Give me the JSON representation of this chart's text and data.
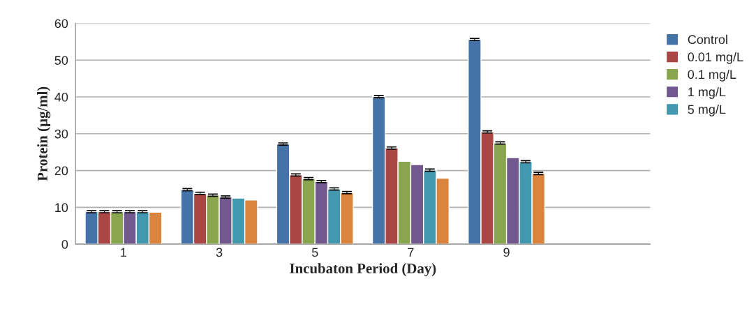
{
  "chart_data": {
    "type": "bar",
    "xlabel": "Incubaton Period (Day)",
    "ylabel": "Protein (µg/ml)",
    "categories": [
      "1",
      "3",
      "5",
      "7",
      "9",
      null
    ],
    "series": [
      {
        "name": "Control",
        "color": "#4572a7",
        "values": [
          8.8,
          14.8,
          27.2,
          40.1,
          55.6,
          null
        ],
        "errors": [
          0.3,
          0.3,
          0.3,
          0.3,
          0.3,
          null
        ]
      },
      {
        "name": "0.01 mg/L",
        "color": "#aa4643",
        "values": [
          8.8,
          13.8,
          18.8,
          26.1,
          30.5,
          null
        ],
        "errors": [
          0.3,
          0.3,
          0.3,
          0.3,
          0.3,
          null
        ]
      },
      {
        "name": "0.1 mg/L",
        "color": "#89a54e",
        "values": [
          8.8,
          13.3,
          17.8,
          22.5,
          27.5,
          null
        ],
        "errors": [
          0.3,
          0.3,
          0.3,
          null,
          0.3,
          null
        ]
      },
      {
        "name": "1 mg/L",
        "color": "#71588f",
        "values": [
          8.8,
          12.8,
          17.0,
          21.6,
          23.5,
          null
        ],
        "errors": [
          0.3,
          0.3,
          0.3,
          null,
          null,
          null
        ]
      },
      {
        "name": "5 mg/L",
        "color": "#4198af",
        "values": [
          8.8,
          12.5,
          15.0,
          20.1,
          22.4,
          null
        ],
        "errors": [
          0.3,
          null,
          0.3,
          0.3,
          0.3,
          null
        ]
      },
      {
        "color": "#db843d",
        "values": [
          8.7,
          12.0,
          14.0,
          17.9,
          19.2,
          null
        ],
        "errors": [
          null,
          null,
          0.3,
          null,
          0.3,
          null
        ]
      }
    ],
    "ylim": [
      0,
      60
    ],
    "yticks": [
      0,
      10,
      20,
      30,
      40,
      50,
      60
    ],
    "grid": "y",
    "legend": "right"
  }
}
